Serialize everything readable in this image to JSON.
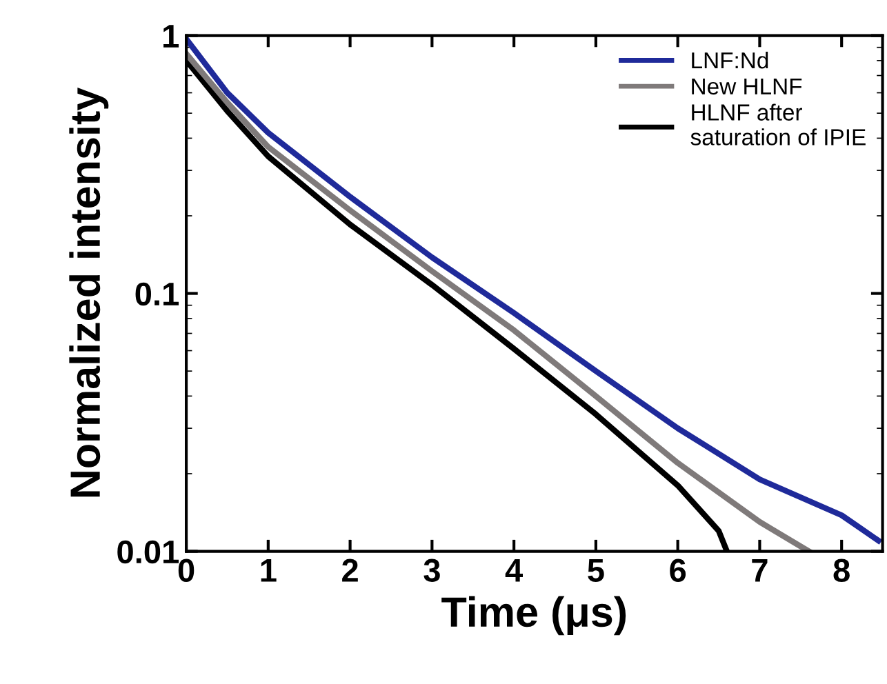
{
  "chart_data": {
    "type": "line",
    "xlabel": "Time (μs)",
    "ylabel": "Normalized intensity",
    "log": "y",
    "xlim": [
      0,
      8.5
    ],
    "ylim": [
      0.01,
      1
    ],
    "xticks": [
      0,
      1,
      2,
      3,
      4,
      5,
      6,
      7,
      8
    ],
    "yticks": [
      0.01,
      0.1,
      1
    ],
    "legend": "top right",
    "grid": false,
    "marker": "none",
    "line_style": "solid",
    "series": [
      {
        "name": "HLNF after\nsaturation of IPIE",
        "color": "#000000",
        "x": [
          0,
          0.5,
          1,
          2,
          3,
          4,
          5,
          6,
          6.5,
          6.6
        ],
        "values": [
          0.8,
          0.51,
          0.34,
          0.185,
          0.108,
          0.061,
          0.034,
          0.018,
          0.012,
          0.01
        ]
      },
      {
        "name": "New HLNF",
        "color": "#7f7a7a",
        "x": [
          0,
          0.5,
          1,
          2,
          3,
          4,
          5,
          6,
          7,
          7.6
        ],
        "values": [
          0.85,
          0.55,
          0.37,
          0.21,
          0.122,
          0.072,
          0.04,
          0.022,
          0.013,
          0.01
        ]
      },
      {
        "name": "LNF:Nd",
        "color": "#1f2a9a",
        "x": [
          0,
          0.5,
          1,
          2,
          3,
          4,
          5,
          6,
          7,
          8,
          8.45
        ],
        "values": [
          0.97,
          0.6,
          0.42,
          0.237,
          0.138,
          0.084,
          0.05,
          0.03,
          0.019,
          0.0138,
          0.011
        ]
      }
    ]
  }
}
